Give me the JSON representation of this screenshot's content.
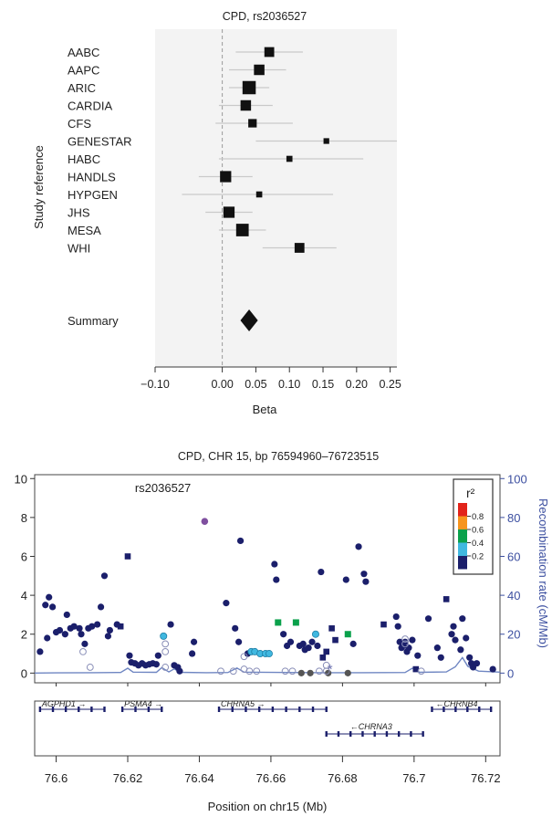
{
  "chart_data": [
    {
      "type": "forest",
      "title": "CPD, rs2036527",
      "xlabel": "Beta",
      "ylabel": "Study reference",
      "xlim": [
        -0.1,
        0.26
      ],
      "xticks": [
        "−0.10",
        "0.00",
        "0.05",
        "0.10",
        "0.15",
        "0.20",
        "0.25"
      ],
      "xtick_values": [
        -0.1,
        0.0,
        0.05,
        0.1,
        0.15,
        0.2,
        0.25
      ],
      "reference_line": 0.0,
      "studies": [
        {
          "name": "AABC",
          "beta": 0.07,
          "low": 0.02,
          "high": 0.12,
          "weight": 0.9
        },
        {
          "name": "AAPC",
          "beta": 0.055,
          "low": 0.01,
          "high": 0.095,
          "weight": 1.0
        },
        {
          "name": "ARIC",
          "beta": 0.04,
          "low": 0.01,
          "high": 0.07,
          "weight": 1.4
        },
        {
          "name": "CARDIA",
          "beta": 0.035,
          "low": -0.005,
          "high": 0.075,
          "weight": 1.0
        },
        {
          "name": "CFS",
          "beta": 0.045,
          "low": -0.01,
          "high": 0.105,
          "weight": 0.7
        },
        {
          "name": "GENESTAR",
          "beta": 0.155,
          "low": 0.05,
          "high": 0.26,
          "weight": 0.3
        },
        {
          "name": "HABC",
          "beta": 0.1,
          "low": -0.005,
          "high": 0.21,
          "weight": 0.35
        },
        {
          "name": "HANDLS",
          "beta": 0.005,
          "low": -0.035,
          "high": 0.045,
          "weight": 1.1
        },
        {
          "name": "HYPGEN",
          "beta": 0.055,
          "low": -0.06,
          "high": 0.165,
          "weight": 0.35
        },
        {
          "name": "JHS",
          "beta": 0.01,
          "low": -0.025,
          "high": 0.045,
          "weight": 1.1
        },
        {
          "name": "MESA",
          "beta": 0.03,
          "low": -0.005,
          "high": 0.065,
          "weight": 1.3
        },
        {
          "name": "WHI",
          "beta": 0.115,
          "low": 0.06,
          "high": 0.17,
          "weight": 0.9
        }
      ],
      "summary": {
        "name": "Summary",
        "beta": 0.04,
        "low": 0.027,
        "high": 0.053
      }
    },
    {
      "type": "scatter",
      "title": "CPD, CHR 15, bp 76594960–76723515",
      "xlabel": "Position on chr15 (Mb)",
      "ylabel_right": "Recombination rate (cM/Mb)",
      "xlim": [
        76.594,
        76.724
      ],
      "ylim": [
        -0.5,
        10.2
      ],
      "y2lim": [
        -5,
        102
      ],
      "xticks": [
        "76.6",
        "76.62",
        "76.64",
        "76.66",
        "76.68",
        "76.7",
        "76.72"
      ],
      "xtick_values": [
        76.6,
        76.62,
        76.64,
        76.66,
        76.68,
        76.7,
        76.72
      ],
      "yticks": [
        "0",
        "2",
        "4",
        "6",
        "8",
        "10"
      ],
      "ytick_values": [
        0,
        2,
        4,
        6,
        8,
        10
      ],
      "y2ticks": [
        "0",
        "20",
        "40",
        "60",
        "80",
        "100"
      ],
      "y2tick_values": [
        0,
        20,
        40,
        60,
        80,
        100
      ],
      "annotation": {
        "text": "rs2036527",
        "x": 76.622,
        "y": 9.3
      },
      "legend": {
        "title": "r²",
        "placement": "top-right",
        "labels": [
          "0.8",
          "0.6",
          "0.4",
          "0.2"
        ],
        "colors": [
          "#e2231a",
          "#f7941d",
          "#0aa14b",
          "#40b8e0",
          "#1b1f6b"
        ]
      },
      "colors": {
        "high": "#1b1f6b",
        "green": "#0aa14b",
        "cyan": "#40b8e0",
        "lead": "#7f4f9f",
        "gray": "#555555",
        "open": "#8a8fb8",
        "recomb": "#6f86c2",
        "axis2": "#3c4fa0"
      },
      "points": [
        {
          "x": 76.5955,
          "y": 1.1,
          "m": "d"
        },
        {
          "x": 76.597,
          "y": 3.5,
          "m": "d"
        },
        {
          "x": 76.598,
          "y": 3.9,
          "m": "d"
        },
        {
          "x": 76.599,
          "y": 3.4,
          "m": "d"
        },
        {
          "x": 76.5975,
          "y": 1.8,
          "m": "d"
        },
        {
          "x": 76.6,
          "y": 2.1,
          "m": "d"
        },
        {
          "x": 76.601,
          "y": 2.2,
          "m": "d"
        },
        {
          "x": 76.6025,
          "y": 2.0,
          "m": "d"
        },
        {
          "x": 76.603,
          "y": 3.0,
          "m": "d"
        },
        {
          "x": 76.604,
          "y": 2.3,
          "m": "d"
        },
        {
          "x": 76.605,
          "y": 2.4,
          "m": "d"
        },
        {
          "x": 76.6065,
          "y": 2.3,
          "m": "d"
        },
        {
          "x": 76.607,
          "y": 2.0,
          "m": "d"
        },
        {
          "x": 76.608,
          "y": 1.5,
          "m": "d"
        },
        {
          "x": 76.609,
          "y": 2.3,
          "m": "d"
        },
        {
          "x": 76.61,
          "y": 2.4,
          "m": "d"
        },
        {
          "x": 76.6115,
          "y": 2.5,
          "m": "d"
        },
        {
          "x": 76.6125,
          "y": 3.4,
          "m": "d"
        },
        {
          "x": 76.6135,
          "y": 5.0,
          "m": "d"
        },
        {
          "x": 76.6145,
          "y": 1.9,
          "m": "d"
        },
        {
          "x": 76.615,
          "y": 2.2,
          "m": "d"
        },
        {
          "x": 76.617,
          "y": 2.5,
          "m": "d"
        },
        {
          "x": 76.618,
          "y": 2.4,
          "m": "s"
        },
        {
          "x": 76.62,
          "y": 6.0,
          "m": "s"
        },
        {
          "x": 76.6205,
          "y": 0.9,
          "m": "d"
        },
        {
          "x": 76.621,
          "y": 0.55,
          "m": "d"
        },
        {
          "x": 76.622,
          "y": 0.5,
          "m": "d"
        },
        {
          "x": 76.623,
          "y": 0.4,
          "m": "d"
        },
        {
          "x": 76.624,
          "y": 0.5,
          "m": "d"
        },
        {
          "x": 76.625,
          "y": 0.4,
          "m": "d"
        },
        {
          "x": 76.626,
          "y": 0.45,
          "m": "d"
        },
        {
          "x": 76.627,
          "y": 0.5,
          "m": "d"
        },
        {
          "x": 76.628,
          "y": 0.45,
          "m": "d"
        },
        {
          "x": 76.6285,
          "y": 0.9,
          "m": "d"
        },
        {
          "x": 76.63,
          "y": 1.9,
          "m": "c"
        },
        {
          "x": 76.632,
          "y": 2.5,
          "m": "d"
        },
        {
          "x": 76.633,
          "y": 0.4,
          "m": "d"
        },
        {
          "x": 76.634,
          "y": 0.3,
          "m": "d"
        },
        {
          "x": 76.6345,
          "y": 0.1,
          "m": "d"
        },
        {
          "x": 76.638,
          "y": 1.0,
          "m": "d"
        },
        {
          "x": 76.6385,
          "y": 1.6,
          "m": "d"
        },
        {
          "x": 76.6415,
          "y": 7.8,
          "m": "lead"
        },
        {
          "x": 76.6475,
          "y": 3.6,
          "m": "d"
        },
        {
          "x": 76.65,
          "y": 2.3,
          "m": "d"
        },
        {
          "x": 76.651,
          "y": 1.6,
          "m": "d"
        },
        {
          "x": 76.6515,
          "y": 6.8,
          "m": "d"
        },
        {
          "x": 76.6535,
          "y": 1.0,
          "m": "d"
        },
        {
          "x": 76.6545,
          "y": 1.1,
          "m": "c"
        },
        {
          "x": 76.6555,
          "y": 1.1,
          "m": "c"
        },
        {
          "x": 76.657,
          "y": 1.0,
          "m": "c"
        },
        {
          "x": 76.6585,
          "y": 1.0,
          "m": "c"
        },
        {
          "x": 76.6595,
          "y": 1.0,
          "m": "c"
        },
        {
          "x": 76.661,
          "y": 5.6,
          "m": "d"
        },
        {
          "x": 76.6615,
          "y": 4.8,
          "m": "d"
        },
        {
          "x": 76.662,
          "y": 2.6,
          "m": "g"
        },
        {
          "x": 76.6635,
          "y": 2.0,
          "m": "d"
        },
        {
          "x": 76.6645,
          "y": 1.4,
          "m": "d"
        },
        {
          "x": 76.6655,
          "y": 1.6,
          "m": "d"
        },
        {
          "x": 76.667,
          "y": 2.6,
          "m": "g"
        },
        {
          "x": 76.668,
          "y": 1.4,
          "m": "d"
        },
        {
          "x": 76.669,
          "y": 1.5,
          "m": "d"
        },
        {
          "x": 76.6695,
          "y": 1.2,
          "m": "d"
        },
        {
          "x": 76.6705,
          "y": 1.3,
          "m": "d"
        },
        {
          "x": 76.6715,
          "y": 1.6,
          "m": "d"
        },
        {
          "x": 76.6725,
          "y": 2.0,
          "m": "c"
        },
        {
          "x": 76.673,
          "y": 1.4,
          "m": "d"
        },
        {
          "x": 76.674,
          "y": 5.2,
          "m": "d"
        },
        {
          "x": 76.6745,
          "y": 0.8,
          "m": "s"
        },
        {
          "x": 76.6755,
          "y": 1.1,
          "m": "s"
        },
        {
          "x": 76.677,
          "y": 2.3,
          "m": "s"
        },
        {
          "x": 76.678,
          "y": 1.7,
          "m": "s"
        },
        {
          "x": 76.681,
          "y": 4.8,
          "m": "d"
        },
        {
          "x": 76.6815,
          "y": 2.0,
          "m": "gs"
        },
        {
          "x": 76.683,
          "y": 1.5,
          "m": "d"
        },
        {
          "x": 76.6845,
          "y": 6.5,
          "m": "d"
        },
        {
          "x": 76.686,
          "y": 5.1,
          "m": "d"
        },
        {
          "x": 76.6865,
          "y": 4.7,
          "m": "d"
        },
        {
          "x": 76.6915,
          "y": 2.5,
          "m": "s"
        },
        {
          "x": 76.695,
          "y": 2.9,
          "m": "d"
        },
        {
          "x": 76.6955,
          "y": 2.4,
          "m": "d"
        },
        {
          "x": 76.696,
          "y": 1.6,
          "m": "d"
        },
        {
          "x": 76.6965,
          "y": 1.3,
          "m": "d"
        },
        {
          "x": 76.697,
          "y": 1.4,
          "m": "d"
        },
        {
          "x": 76.6975,
          "y": 1.6,
          "m": "d"
        },
        {
          "x": 76.698,
          "y": 1.1,
          "m": "d"
        },
        {
          "x": 76.6985,
          "y": 1.3,
          "m": "d"
        },
        {
          "x": 76.6995,
          "y": 1.7,
          "m": "d"
        },
        {
          "x": 76.7005,
          "y": 0.2,
          "m": "s"
        },
        {
          "x": 76.701,
          "y": 0.9,
          "m": "d"
        },
        {
          "x": 76.704,
          "y": 2.8,
          "m": "d"
        },
        {
          "x": 76.7065,
          "y": 1.3,
          "m": "d"
        },
        {
          "x": 76.7075,
          "y": 0.8,
          "m": "d"
        },
        {
          "x": 76.709,
          "y": 3.8,
          "m": "s"
        },
        {
          "x": 76.7105,
          "y": 2.0,
          "m": "d"
        },
        {
          "x": 76.711,
          "y": 2.4,
          "m": "d"
        },
        {
          "x": 76.7115,
          "y": 1.7,
          "m": "d"
        },
        {
          "x": 76.713,
          "y": 1.2,
          "m": "d"
        },
        {
          "x": 76.7135,
          "y": 2.8,
          "m": "d"
        },
        {
          "x": 76.7145,
          "y": 1.8,
          "m": "d"
        },
        {
          "x": 76.7155,
          "y": 0.8,
          "m": "d"
        },
        {
          "x": 76.716,
          "y": 0.5,
          "m": "d"
        },
        {
          "x": 76.7165,
          "y": 0.3,
          "m": "d"
        },
        {
          "x": 76.7175,
          "y": 0.5,
          "m": "d"
        },
        {
          "x": 76.722,
          "y": 0.2,
          "m": "d"
        },
        {
          "x": 76.6685,
          "y": 0.0,
          "m": "gray"
        },
        {
          "x": 76.671,
          "y": 0.0,
          "m": "gray"
        },
        {
          "x": 76.676,
          "y": 0.0,
          "m": "gray"
        },
        {
          "x": 76.6815,
          "y": 0.0,
          "m": "gray"
        },
        {
          "x": 76.6765,
          "y": 0.2,
          "m": "star"
        },
        {
          "x": 76.6075,
          "y": 1.1,
          "m": "o"
        },
        {
          "x": 76.6095,
          "y": 0.3,
          "m": "o"
        },
        {
          "x": 76.6305,
          "y": 1.5,
          "m": "o"
        },
        {
          "x": 76.6305,
          "y": 1.1,
          "m": "o"
        },
        {
          "x": 76.6305,
          "y": 0.3,
          "m": "o"
        },
        {
          "x": 76.646,
          "y": 0.1,
          "m": "o"
        },
        {
          "x": 76.6495,
          "y": 0.1,
          "m": "o"
        },
        {
          "x": 76.6525,
          "y": 0.85,
          "m": "o"
        },
        {
          "x": 76.6525,
          "y": 0.2,
          "m": "o"
        },
        {
          "x": 76.654,
          "y": 0.1,
          "m": "o"
        },
        {
          "x": 76.656,
          "y": 0.1,
          "m": "o"
        },
        {
          "x": 76.664,
          "y": 0.1,
          "m": "o"
        },
        {
          "x": 76.666,
          "y": 0.1,
          "m": "o"
        },
        {
          "x": 76.6735,
          "y": 0.1,
          "m": "o"
        },
        {
          "x": 76.6755,
          "y": 0.1,
          "m": "o"
        },
        {
          "x": 76.6755,
          "y": 0.4,
          "m": "o"
        },
        {
          "x": 76.6975,
          "y": 1.75,
          "m": "o"
        },
        {
          "x": 76.6975,
          "y": 1.5,
          "m": "o"
        },
        {
          "x": 76.702,
          "y": 0.1,
          "m": "o"
        }
      ],
      "recombination": [
        [
          76.594,
          0.0
        ],
        [
          76.6,
          0.1
        ],
        [
          76.61,
          0.2
        ],
        [
          76.618,
          0.3
        ],
        [
          76.62,
          2.5
        ],
        [
          76.6215,
          0.5
        ],
        [
          76.628,
          0.4
        ],
        [
          76.6295,
          2.8
        ],
        [
          76.6315,
          0.6
        ],
        [
          76.633,
          2.2
        ],
        [
          76.6345,
          0.4
        ],
        [
          76.642,
          0.2
        ],
        [
          76.648,
          0.3
        ],
        [
          76.6505,
          2.6
        ],
        [
          76.6525,
          0.5
        ],
        [
          76.665,
          0.3
        ],
        [
          76.675,
          0.2
        ],
        [
          76.685,
          0.2
        ],
        [
          76.6975,
          0.3
        ],
        [
          76.6995,
          2.5
        ],
        [
          76.7015,
          0.4
        ],
        [
          76.709,
          0.6
        ],
        [
          76.7115,
          3.2
        ],
        [
          76.7135,
          8.0
        ],
        [
          76.715,
          3.5
        ],
        [
          76.718,
          1.0
        ],
        [
          76.724,
          0.5
        ]
      ],
      "genes": [
        {
          "name": "AGPHD1",
          "label": "AGPHD1",
          "start": 76.5955,
          "end": 76.6135,
          "row": 0,
          "arrow": "right"
        },
        {
          "name": "PSMA4",
          "label": "PSMA4",
          "start": 76.6185,
          "end": 76.6295,
          "row": 0,
          "arrow": "right"
        },
        {
          "name": "CHRNA5",
          "label": "CHRNA5",
          "start": 76.6455,
          "end": 76.6755,
          "row": 0,
          "arrow": "right"
        },
        {
          "name": "CHRNA3",
          "label": "CHRNA3",
          "start": 76.6755,
          "end": 76.7025,
          "row": 1,
          "arrow": "left"
        },
        {
          "name": "CHRNB4",
          "label": "CHRNB4",
          "start": 76.705,
          "end": 76.7215,
          "row": 0,
          "arrow": "left"
        }
      ]
    }
  ]
}
